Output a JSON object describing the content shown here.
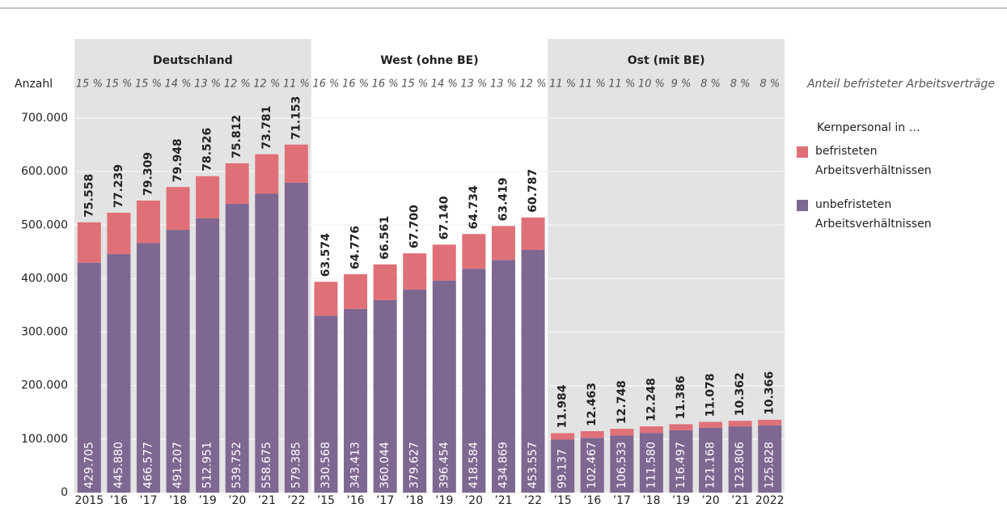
{
  "chart_data": {
    "type": "stacked_bar",
    "y_label": "Anzahl",
    "annotation": "Anteil befristeter Arbeitsverträge",
    "legend_title": "Kernpersonal in …",
    "groups": [
      {
        "name": "Deutschland",
        "shaded": true
      },
      {
        "name": "West (ohne BE)",
        "shaded": false
      },
      {
        "name": "Ost (mit BE)",
        "shaded": true
      }
    ],
    "categories": [
      "2015",
      "’16",
      "’17",
      "’18",
      "’19",
      "’20",
      "’21",
      "’22",
      "’15",
      "’16",
      "’17",
      "’18",
      "’19",
      "’20",
      "’21",
      "’22",
      "’15",
      "’16",
      "’17",
      "’18",
      "’19",
      "’20",
      "’21",
      "2022"
    ],
    "shares": [
      "15 %",
      "15 %",
      "15 %",
      "14 %",
      "13 %",
      "12 %",
      "12 %",
      "11 %",
      "16 %",
      "16 %",
      "16 %",
      "15 %",
      "14 %",
      "13 %",
      "13 %",
      "12 %",
      "11 %",
      "11 %",
      "11 %",
      "10 %",
      "9 %",
      "8 %",
      "8 %",
      "8 %"
    ],
    "series": [
      {
        "name": "unbefristeten Arbeitsverhältnissen",
        "color": "#7e6791",
        "values": [
          429705,
          445880,
          466577,
          491207,
          512951,
          539752,
          558675,
          579385,
          330568,
          343413,
          360044,
          379627,
          396454,
          418584,
          434869,
          453557,
          99137,
          102467,
          106533,
          111580,
          116497,
          121168,
          123806,
          125828
        ],
        "value_labels": [
          "429.705",
          "445.880",
          "466.577",
          "491.207",
          "512.951",
          "539.752",
          "558.675",
          "579.385",
          "330.568",
          "343.413",
          "360.044",
          "379.627",
          "396.454",
          "418.584",
          "434.869",
          "453.557",
          "99.137",
          "102.467",
          "106.533",
          "111.580",
          "116.497",
          "121.168",
          "123.806",
          "125.828"
        ]
      },
      {
        "name": "befristeten Arbeitsverhältnissen",
        "color": "#e07078",
        "values": [
          75558,
          77239,
          79309,
          79948,
          78526,
          75812,
          73781,
          71153,
          63574,
          64776,
          66561,
          67700,
          67140,
          64734,
          63419,
          60787,
          11984,
          12463,
          12748,
          12248,
          11386,
          11078,
          10362,
          10366
        ],
        "value_labels": [
          "75.558",
          "77.239",
          "79.309",
          "79.948",
          "78.526",
          "75.812",
          "73.781",
          "71.153",
          "63.574",
          "64.776",
          "66.561",
          "67.700",
          "67.140",
          "64.734",
          "63.419",
          "60.787",
          "11.984",
          "12.463",
          "12.748",
          "12.248",
          "11.386",
          "11.078",
          "10.362",
          "10.366"
        ]
      }
    ],
    "ylim": [
      0,
      700000
    ],
    "yticks": [
      0,
      {
        "value": 100000,
        "label": "100.000"
      },
      {
        "value": 200000,
        "label": "200.000"
      },
      {
        "value": 300000,
        "label": "300.000"
      },
      {
        "value": 400000,
        "label": "400.000"
      },
      {
        "value": 500000,
        "label": "500.000"
      },
      {
        "value": 600000,
        "label": "600.000"
      },
      {
        "value": 700000,
        "label": "700.000"
      }
    ],
    "grid": true
  }
}
